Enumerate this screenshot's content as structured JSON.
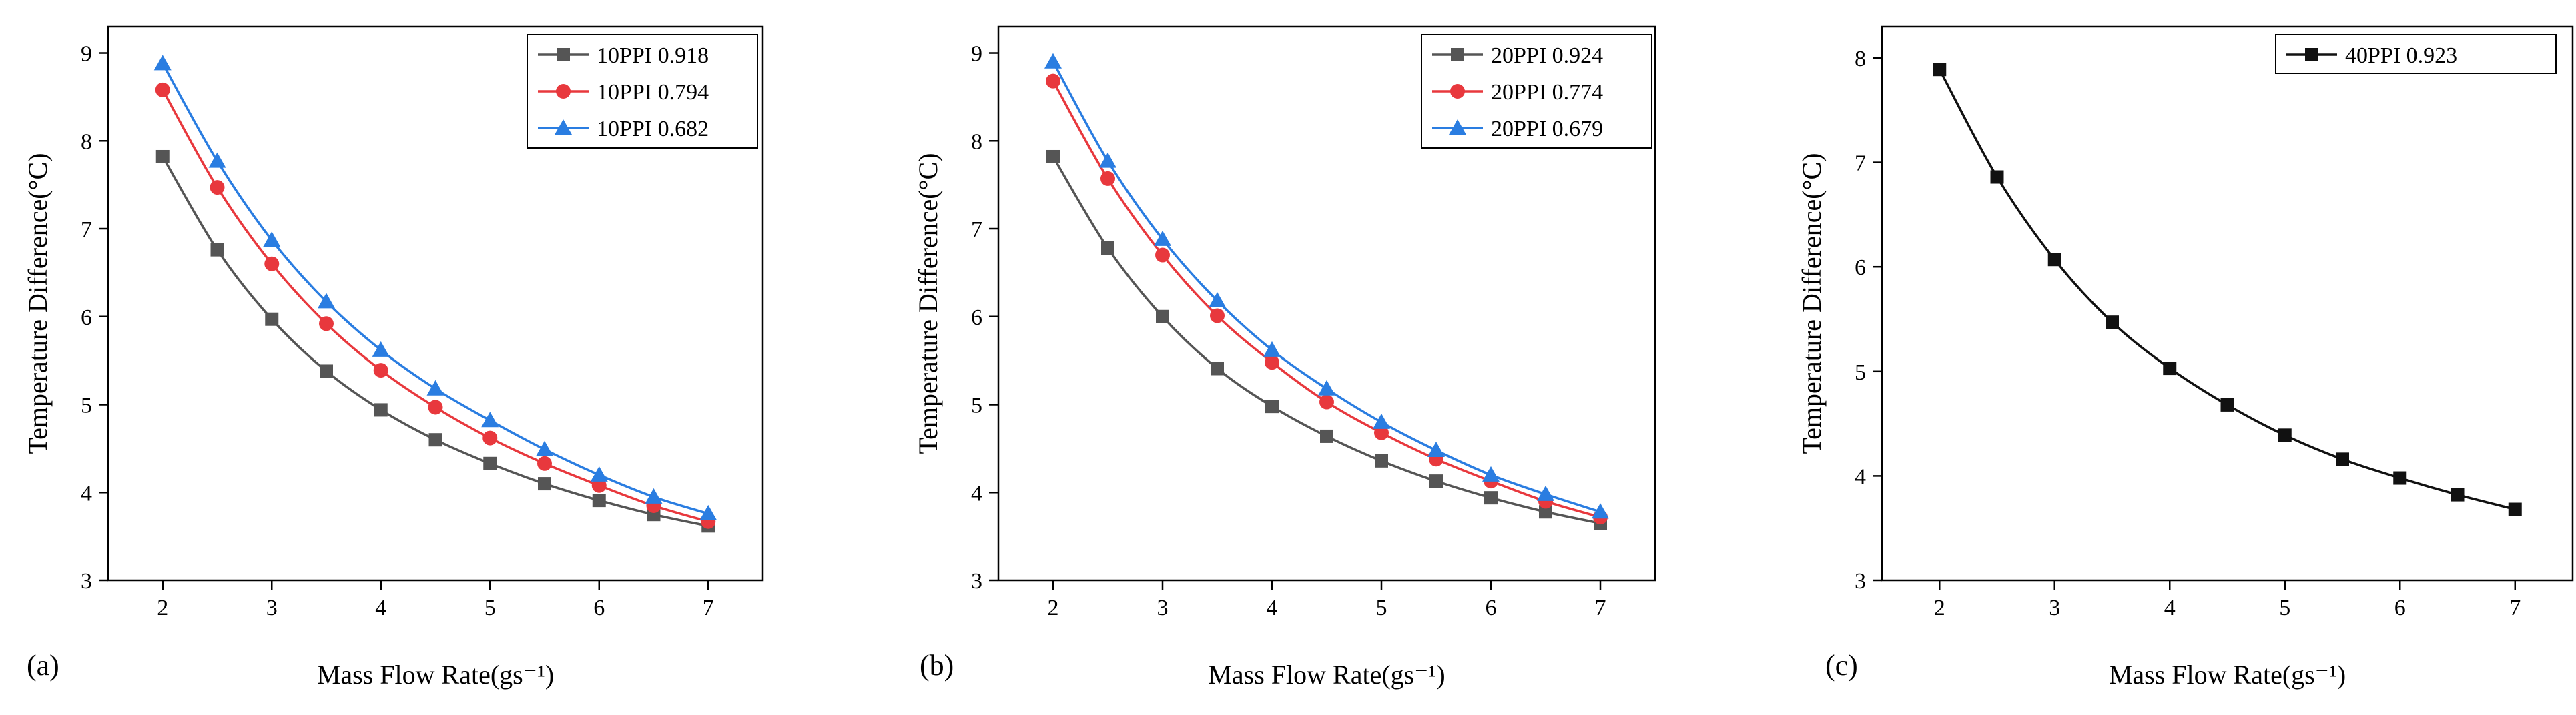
{
  "chart_data": [
    {
      "type": "line",
      "panel_label": "(a)",
      "xlabel": "Mass Flow Rate(gs⁻¹)",
      "ylabel": "Temperature Difference(°C)",
      "xlim": [
        1.5,
        7.5
      ],
      "ylim": [
        3,
        9.3
      ],
      "xticks": [
        "2",
        "3",
        "4",
        "5",
        "6",
        "7"
      ],
      "yticks": [
        "3",
        "4",
        "5",
        "6",
        "7",
        "8",
        "9"
      ],
      "grid": false,
      "legend_position": "top-right",
      "x": [
        2,
        2.5,
        3,
        3.5,
        4,
        4.5,
        5,
        5.5,
        6,
        6.5,
        7
      ],
      "series": [
        {
          "name": "10PPI 0.918",
          "color": "#555555",
          "marker": "square",
          "values": [
            7.82,
            6.76,
            5.97,
            5.38,
            4.94,
            4.6,
            4.33,
            4.1,
            3.91,
            3.75,
            3.62
          ]
        },
        {
          "name": "10PPI 0.794",
          "color": "#e8383d",
          "marker": "circle",
          "values": [
            8.58,
            7.47,
            6.6,
            5.92,
            5.39,
            4.97,
            4.62,
            4.33,
            4.08,
            3.85,
            3.67
          ]
        },
        {
          "name": "10PPI 0.682",
          "color": "#2a7de1",
          "marker": "triangle",
          "values": [
            8.88,
            7.77,
            6.87,
            6.17,
            5.62,
            5.18,
            4.82,
            4.49,
            4.2,
            3.95,
            3.76
          ]
        }
      ]
    },
    {
      "type": "line",
      "panel_label": "(b)",
      "xlabel": "Mass Flow Rate(gs⁻¹)",
      "ylabel": "Temperature Difference(°C)",
      "xlim": [
        1.5,
        7.5
      ],
      "ylim": [
        3,
        9.3
      ],
      "xticks": [
        "2",
        "3",
        "4",
        "5",
        "6",
        "7"
      ],
      "yticks": [
        "3",
        "4",
        "5",
        "6",
        "7",
        "8",
        "9"
      ],
      "grid": false,
      "legend_position": "top-right",
      "x": [
        2,
        2.5,
        3,
        3.5,
        4,
        4.5,
        5,
        5.5,
        6,
        6.5,
        7
      ],
      "series": [
        {
          "name": "20PPI 0.924",
          "color": "#555555",
          "marker": "square",
          "values": [
            7.82,
            6.78,
            6.0,
            5.41,
            4.98,
            4.64,
            4.36,
            4.13,
            3.94,
            3.78,
            3.65
          ]
        },
        {
          "name": "20PPI 0.774",
          "color": "#e8383d",
          "marker": "circle",
          "values": [
            8.68,
            7.57,
            6.7,
            6.01,
            5.48,
            5.03,
            4.68,
            4.38,
            4.13,
            3.9,
            3.72
          ]
        },
        {
          "name": "20PPI 0.679",
          "color": "#2a7de1",
          "marker": "triangle",
          "values": [
            8.9,
            7.77,
            6.88,
            6.18,
            5.62,
            5.18,
            4.8,
            4.48,
            4.2,
            3.98,
            3.78
          ]
        }
      ]
    },
    {
      "type": "line",
      "panel_label": "(c)",
      "xlabel": "Mass Flow Rate(gs⁻¹)",
      "ylabel": "Temperature Difference(°C)",
      "xlim": [
        1.5,
        7.5
      ],
      "ylim": [
        3,
        8.3
      ],
      "xticks": [
        "2",
        "3",
        "4",
        "5",
        "6",
        "7"
      ],
      "yticks": [
        "3",
        "4",
        "5",
        "6",
        "7",
        "8"
      ],
      "grid": false,
      "legend_position": "top-right",
      "x": [
        2,
        2.5,
        3,
        3.5,
        4,
        4.5,
        5,
        5.5,
        6,
        6.5,
        7
      ],
      "series": [
        {
          "name": "40PPI 0.923",
          "color": "#111111",
          "marker": "square",
          "values": [
            7.89,
            6.86,
            6.07,
            5.47,
            5.03,
            4.68,
            4.39,
            4.16,
            3.98,
            3.82,
            3.68
          ]
        }
      ]
    }
  ]
}
